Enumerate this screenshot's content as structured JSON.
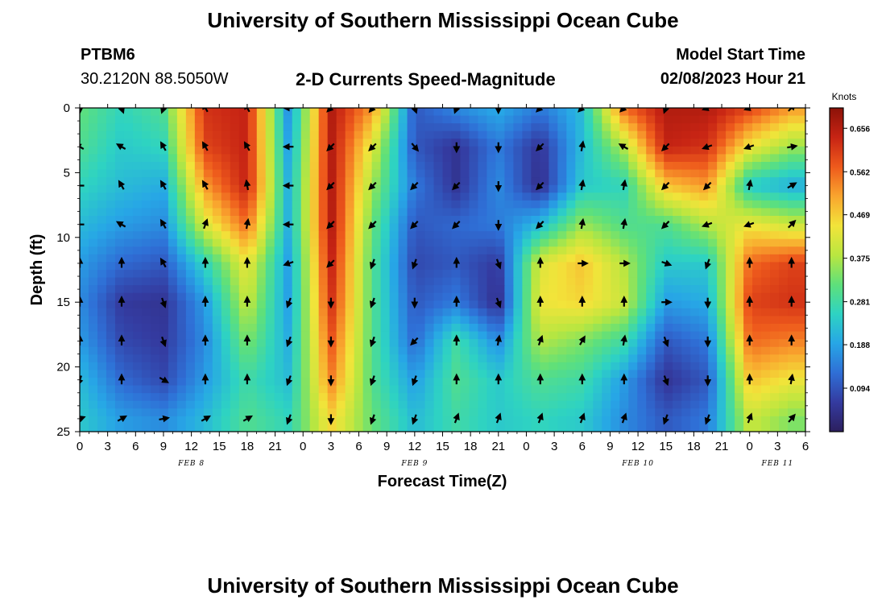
{
  "page": {
    "title": "University of Southern Mississippi Ocean Cube",
    "station_id": "PTBM6",
    "station_coords": "30.2120N  88.5050W",
    "subtitle": "2-D Currents Speed-Magnitude",
    "model_label": "Model Start Time",
    "model_time": "02/08/2023 Hour 21",
    "footer_title": "University of Southern Mississippi Ocean Cube"
  },
  "chart_data": {
    "type": "heatmap",
    "title": "2-D Currents Speed-Magnitude",
    "xlabel": "Forecast Time(Z)",
    "ylabel": "Depth (ft)",
    "x_range_hours": [
      0,
      78
    ],
    "y_range_ft": [
      0,
      25
    ],
    "y_inverted": true,
    "x_ticks": [
      "0",
      "3",
      "6",
      "9",
      "12",
      "15",
      "18",
      "21",
      "0",
      "3",
      "6",
      "9",
      "12",
      "15",
      "18",
      "21",
      "0",
      "3",
      "6",
      "9",
      "12",
      "15",
      "18",
      "21",
      "0",
      "3",
      "6"
    ],
    "y_ticks": [
      "0",
      "5",
      "10",
      "15",
      "20",
      "25"
    ],
    "day_labels": [
      {
        "label": "FEB 8",
        "hour": 12
      },
      {
        "label": "FEB 9",
        "hour": 36
      },
      {
        "label": "FEB 10",
        "hour": 60
      },
      {
        "label": "FEB 11",
        "hour": 75
      }
    ],
    "colorbar": {
      "unit": "Knots",
      "ticks": [
        "0.094",
        "0.188",
        "0.281",
        "0.375",
        "0.469",
        "0.562",
        "0.656"
      ],
      "range": [
        0,
        0.7
      ],
      "colors": [
        "#2c1f5e",
        "#343ba0",
        "#2f6fd6",
        "#27a6e6",
        "#2ed3c2",
        "#5fe07a",
        "#b9e640",
        "#f2e43a",
        "#f9a52e",
        "#ee5a1c",
        "#c72414",
        "#8c1208"
      ]
    },
    "depths_ft": [
      0,
      3,
      6,
      9,
      12,
      15,
      18,
      21,
      24
    ],
    "times_h": [
      0,
      4.5,
      9,
      13.5,
      18,
      22.5,
      27,
      31.5,
      36,
      40.5,
      45,
      49.5,
      54,
      58.5,
      63,
      67.5,
      72,
      76.5
    ],
    "speed_knots": [
      [
        0.32,
        0.26,
        0.3,
        0.62,
        0.64,
        0.16,
        0.66,
        0.52,
        0.1,
        0.16,
        0.2,
        0.14,
        0.22,
        0.56,
        0.66,
        0.66,
        0.6,
        0.52
      ],
      [
        0.3,
        0.24,
        0.26,
        0.6,
        0.64,
        0.18,
        0.66,
        0.42,
        0.1,
        0.05,
        0.14,
        0.05,
        0.22,
        0.38,
        0.64,
        0.62,
        0.44,
        0.36
      ],
      [
        0.26,
        0.22,
        0.2,
        0.52,
        0.64,
        0.2,
        0.66,
        0.36,
        0.14,
        0.05,
        0.16,
        0.04,
        0.24,
        0.26,
        0.48,
        0.52,
        0.24,
        0.2
      ],
      [
        0.22,
        0.18,
        0.16,
        0.42,
        0.56,
        0.2,
        0.66,
        0.32,
        0.1,
        0.12,
        0.14,
        0.22,
        0.36,
        0.3,
        0.3,
        0.38,
        0.44,
        0.4
      ],
      [
        0.18,
        0.12,
        0.1,
        0.26,
        0.44,
        0.18,
        0.64,
        0.3,
        0.08,
        0.1,
        0.06,
        0.42,
        0.48,
        0.38,
        0.24,
        0.24,
        0.56,
        0.6
      ],
      [
        0.16,
        0.06,
        0.05,
        0.18,
        0.4,
        0.18,
        0.62,
        0.3,
        0.1,
        0.14,
        0.04,
        0.44,
        0.46,
        0.4,
        0.18,
        0.2,
        0.6,
        0.62
      ],
      [
        0.18,
        0.08,
        0.06,
        0.16,
        0.34,
        0.2,
        0.58,
        0.3,
        0.12,
        0.28,
        0.16,
        0.38,
        0.34,
        0.28,
        0.1,
        0.14,
        0.56,
        0.54
      ],
      [
        0.22,
        0.12,
        0.08,
        0.18,
        0.28,
        0.22,
        0.54,
        0.3,
        0.18,
        0.3,
        0.24,
        0.3,
        0.28,
        0.18,
        0.05,
        0.1,
        0.48,
        0.44
      ],
      [
        0.24,
        0.18,
        0.16,
        0.22,
        0.3,
        0.26,
        0.46,
        0.32,
        0.22,
        0.28,
        0.24,
        0.26,
        0.24,
        0.16,
        0.1,
        0.14,
        0.4,
        0.34
      ]
    ],
    "direction_deg": [
      [
        180,
        160,
        200,
        330,
        330,
        270,
        225,
        220,
        160,
        200,
        180,
        225,
        225,
        225,
        200,
        250,
        250,
        45
      ],
      [
        300,
        300,
        330,
        330,
        330,
        270,
        225,
        225,
        140,
        180,
        180,
        225,
        10,
        300,
        225,
        250,
        250,
        80
      ],
      [
        270,
        330,
        330,
        330,
        350,
        270,
        225,
        225,
        225,
        225,
        180,
        225,
        10,
        10,
        225,
        225,
        10,
        60
      ],
      [
        270,
        300,
        330,
        20,
        10,
        270,
        225,
        225,
        225,
        225,
        180,
        225,
        10,
        10,
        225,
        250,
        250,
        45
      ],
      [
        0,
        0,
        330,
        0,
        0,
        250,
        225,
        200,
        200,
        0,
        160,
        0,
        90,
        90,
        110,
        200,
        0,
        0
      ],
      [
        0,
        0,
        160,
        0,
        0,
        200,
        180,
        200,
        180,
        0,
        160,
        0,
        0,
        0,
        90,
        180,
        0,
        0
      ],
      [
        0,
        0,
        160,
        0,
        0,
        200,
        180,
        200,
        225,
        0,
        10,
        20,
        30,
        10,
        160,
        180,
        0,
        0
      ],
      [
        200,
        0,
        120,
        0,
        0,
        200,
        180,
        200,
        200,
        0,
        0,
        0,
        0,
        0,
        160,
        180,
        0,
        10
      ],
      [
        70,
        60,
        80,
        60,
        60,
        200,
        180,
        200,
        200,
        20,
        20,
        20,
        20,
        20,
        200,
        200,
        20,
        40
      ]
    ]
  }
}
